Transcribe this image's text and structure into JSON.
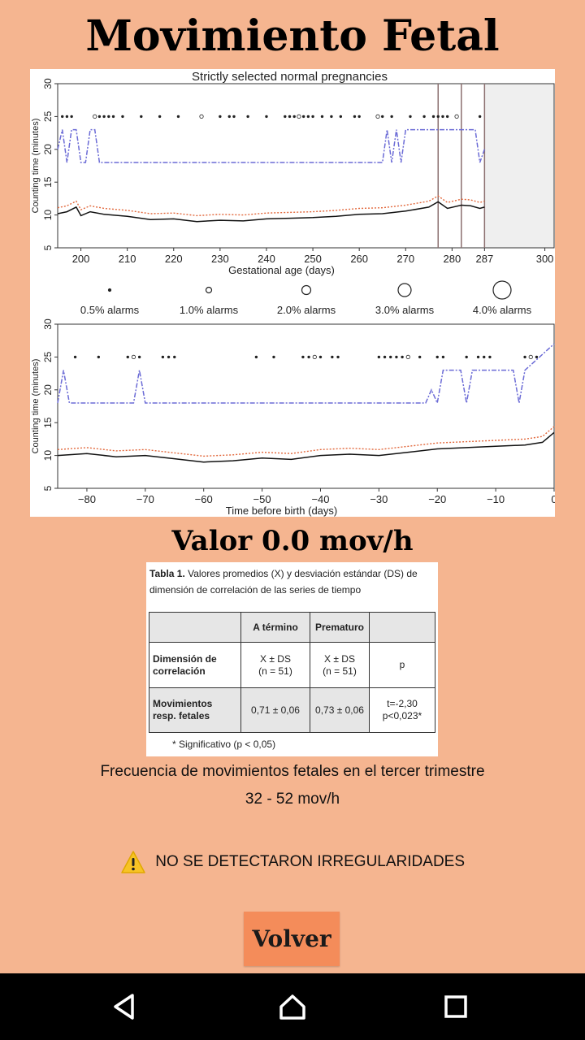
{
  "app": {
    "title": "Movimiento Fetal",
    "value_text": "Valor 0.0 mov/h"
  },
  "chart_data": [
    {
      "type": "scatter",
      "title": "Strictly selected normal pregnancies",
      "xlabel": "Gestational age (days)",
      "ylabel": "Counting time (minutes)",
      "xticks": [
        "200",
        "210",
        "220",
        "230",
        "240",
        "250",
        "260",
        "270",
        "280",
        "287",
        "300"
      ],
      "yticks": [
        "5",
        "10",
        "15",
        "20",
        "25",
        "30"
      ],
      "xlim": [
        195,
        302
      ],
      "ylim": [
        5,
        30
      ],
      "vlines": [
        277,
        282,
        287
      ],
      "shaded_from": 287,
      "series": [
        {
          "values": [
            [
              195,
              10.2
            ],
            [
              197,
              10.5
            ],
            [
              199,
              11.2
            ],
            [
              200,
              9.9
            ],
            [
              202,
              10.5
            ],
            [
              205,
              10.1
            ],
            [
              210,
              9.8
            ],
            [
              215,
              9.3
            ],
            [
              220,
              9.4
            ],
            [
              225,
              9.0
            ],
            [
              230,
              9.2
            ],
            [
              235,
              9.1
            ],
            [
              240,
              9.4
            ],
            [
              245,
              9.5
            ],
            [
              250,
              9.6
            ],
            [
              255,
              9.8
            ],
            [
              260,
              10.1
            ],
            [
              265,
              10.2
            ],
            [
              270,
              10.6
            ],
            [
              275,
              11.2
            ],
            [
              277,
              12.0
            ],
            [
              279,
              11.0
            ],
            [
              282,
              11.5
            ],
            [
              284,
              11.4
            ],
            [
              286,
              11.0
            ],
            [
              287,
              11.2
            ]
          ]
        },
        {
          "values": [
            [
              195,
              20
            ],
            [
              196,
              23
            ],
            [
              197,
              18
            ],
            [
              198,
              23
            ],
            [
              199,
              23
            ],
            [
              200,
              18
            ],
            [
              201,
              18
            ],
            [
              202,
              23
            ],
            [
              203,
              23
            ],
            [
              204,
              18
            ],
            [
              265,
              18
            ],
            [
              266,
              23
            ],
            [
              267,
              18
            ],
            [
              268,
              23
            ],
            [
              269,
              18
            ],
            [
              270,
              23
            ],
            [
              285,
              23
            ],
            [
              286,
              18
            ],
            [
              287,
              20
            ]
          ]
        }
      ],
      "alarm_dots_y": 25,
      "alarm_dots_x": [
        196,
        197,
        198,
        203,
        204,
        205,
        206,
        207,
        209,
        213,
        217,
        221,
        226,
        230,
        232,
        233,
        236,
        240,
        244,
        245,
        246,
        247,
        248,
        249,
        250,
        252,
        254,
        256,
        259,
        260,
        264,
        265,
        267,
        271,
        274,
        276,
        277,
        278,
        279,
        281,
        286
      ]
    },
    {
      "type": "scatter",
      "xlabel": "Time before birth (days)",
      "ylabel": "Counting time (minutes)",
      "xticks": [
        "−80",
        "−70",
        "−60",
        "−50",
        "−40",
        "−30",
        "−20",
        "−10",
        "0"
      ],
      "yticks": [
        "5",
        "10",
        "15",
        "20",
        "25",
        "30"
      ],
      "xlim": [
        -85,
        0
      ],
      "ylim": [
        5,
        30
      ],
      "series": [
        {
          "values": [
            [
              -85,
              10
            ],
            [
              -80,
              10.3
            ],
            [
              -75,
              9.8
            ],
            [
              -70,
              10
            ],
            [
              -65,
              9.5
            ],
            [
              -60,
              9.0
            ],
            [
              -55,
              9.2
            ],
            [
              -50,
              9.6
            ],
            [
              -45,
              9.4
            ],
            [
              -40,
              10.0
            ],
            [
              -35,
              10.2
            ],
            [
              -30,
              10.0
            ],
            [
              -25,
              10.5
            ],
            [
              -20,
              11.0
            ],
            [
              -15,
              11.2
            ],
            [
              -10,
              11.4
            ],
            [
              -5,
              11.6
            ],
            [
              -2,
              12.0
            ],
            [
              0,
              13.5
            ]
          ]
        },
        {
          "values": [
            [
              -85,
              18
            ],
            [
              -84,
              23
            ],
            [
              -83,
              18
            ],
            [
              -72,
              18
            ],
            [
              -71,
              23
            ],
            [
              -70,
              18
            ],
            [
              -22,
              18
            ],
            [
              -21,
              20
            ],
            [
              -20,
              18
            ],
            [
              -19,
              23
            ],
            [
              -17,
              23
            ],
            [
              -16,
              23
            ],
            [
              -15,
              18
            ],
            [
              -14,
              23
            ],
            [
              -7,
              23
            ],
            [
              -6,
              18
            ],
            [
              -5,
              23
            ],
            [
              0,
              27
            ]
          ]
        }
      ],
      "alarm_dots_y": 25,
      "alarm_dots_x": [
        -82,
        -78,
        -73,
        -72,
        -71,
        -67,
        -66,
        -65,
        -51,
        -48,
        -43,
        -42,
        -41,
        -40,
        -38,
        -37,
        -30,
        -29,
        -28,
        -27,
        -26,
        -25,
        -23,
        -20,
        -19,
        -15,
        -13,
        -12,
        -11,
        -5,
        -4,
        -3
      ]
    }
  ],
  "legend": {
    "items": [
      "0.5% alarms",
      "1.0% alarms",
      "2.0% alarms",
      "3.0% alarms",
      "4.0% alarms"
    ]
  },
  "table": {
    "caption_bold": "Tabla 1.",
    "caption_text": "Valores promedios (X) y desviación estándar (DS) de dimensión de correlación de las series de tiempo",
    "headers": [
      "",
      "A término",
      "Prematuro",
      ""
    ],
    "row1": {
      "label": "Dimensión de correlación",
      "c1a": "X ± DS",
      "c1b": "(n = 51)",
      "c2a": "X ± DS",
      "c2b": "(n = 51)",
      "c3": "p"
    },
    "row2": {
      "label": "Movimientos resp. fetales",
      "c1": "0,71 ± 0,06",
      "c2": "0,73 ± 0,06",
      "c3a": "t=-2,30",
      "c3b": "p<0,023*"
    },
    "footnote": "* Significativo (p < 0,05)"
  },
  "info": {
    "frequency_label": "Frecuencia de movimientos fetales en el tercer trimestre",
    "frequency_range": "32 - 52 mov/h",
    "status": "NO SE DETECTARON IRREGULARIDADES"
  },
  "buttons": {
    "back": "Volver"
  },
  "nav": {
    "back_icon": "triangle-back-icon",
    "home_icon": "home-icon",
    "recents_icon": "square-recents-icon"
  }
}
